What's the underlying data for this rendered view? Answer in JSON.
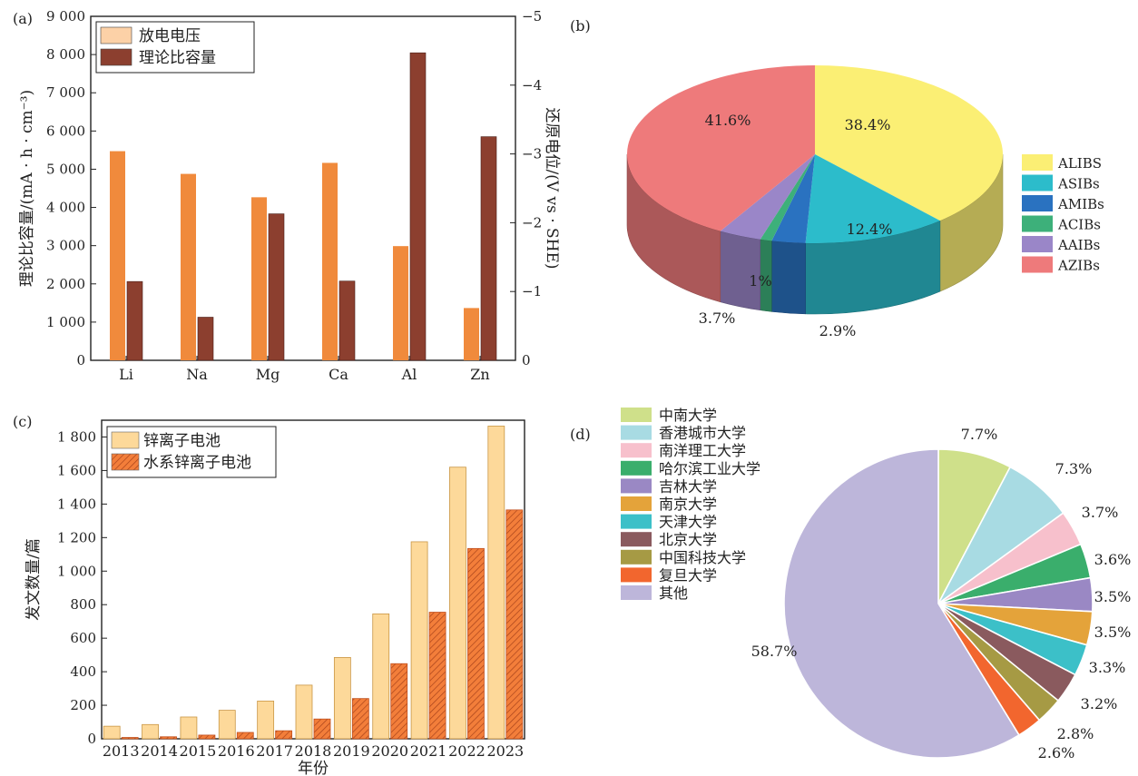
{
  "panels": {
    "a": "(a)",
    "b": "(b)",
    "c": "(c)",
    "d": "(d)"
  },
  "chart_data": [
    {
      "id": "a",
      "type": "bar",
      "categories": [
        "Li",
        "Na",
        "Mg",
        "Ca",
        "Al",
        "Zn"
      ],
      "series": [
        {
          "name": "放电电压",
          "axis": "right",
          "color": "#f08a3c",
          "values": [
            -3.04,
            -2.71,
            -2.37,
            -2.87,
            -1.66,
            -0.76
          ]
        },
        {
          "name": "理论比容量",
          "axis": "left",
          "color": "#8c3f2f",
          "values": [
            2062,
            1128,
            3833,
            2073,
            8046,
            5851
          ]
        }
      ],
      "ylabel": "理论比容量/(mA · h · cm⁻³)",
      "y2label": "还原电位/(V vs · SHE)",
      "ylim": [
        0,
        9000
      ],
      "y2lim": [
        0,
        -5
      ],
      "yticks": [
        "0",
        "1 000",
        "2 000",
        "3 000",
        "4 000",
        "5 000",
        "6 000",
        "7 000",
        "8 000",
        "9 000"
      ],
      "y2ticks": [
        "0",
        "−1",
        "−2",
        "−3",
        "−4",
        "−5"
      ],
      "legend_position": "top-left"
    },
    {
      "id": "b",
      "type": "pie",
      "style": "3d",
      "labels": [
        "ALIBS",
        "ASIBs",
        "AMIBs",
        "ACIBs",
        "AAIBs",
        "AZIBs"
      ],
      "values": [
        38.4,
        12.4,
        2.9,
        1.0,
        3.7,
        41.6
      ],
      "slice_labels": [
        "38.4%",
        "12.4%",
        "2.9%",
        "1%",
        "3.7%",
        "41.6%"
      ],
      "colors": [
        "#fbef74",
        "#2cbccb",
        "#2a72c0",
        "#3db07a",
        "#9a86c8",
        "#ee7a7b"
      ],
      "legend_position": "right"
    },
    {
      "id": "c",
      "type": "bar",
      "categories": [
        "2013",
        "2014",
        "2015",
        "2016",
        "2017",
        "2018",
        "2019",
        "2020",
        "2021",
        "2022",
        "2023"
      ],
      "series": [
        {
          "name": "锌离子电池",
          "color": "#fdd99a",
          "values": [
            75,
            85,
            130,
            170,
            225,
            320,
            485,
            745,
            1175,
            1620,
            1865
          ]
        },
        {
          "name": "水系锌离子电池",
          "color": "#f37e3a",
          "values": [
            8,
            12,
            22,
            38,
            48,
            118,
            240,
            448,
            755,
            1135,
            1365
          ]
        }
      ],
      "xlabel": "年份",
      "ylabel": "发文数量/篇",
      "ylim": [
        0,
        1900
      ],
      "yticks": [
        "0",
        "200",
        "400",
        "600",
        "800",
        "1 000",
        "1 200",
        "1 400",
        "1 600",
        "1 800"
      ],
      "legend_position": "top-left"
    },
    {
      "id": "d",
      "type": "pie",
      "labels": [
        "中南大学",
        "香港城市大学",
        "南洋理工大学",
        "哈尔滨工业大学",
        "吉林大学",
        "南京大学",
        "天津大学",
        "北京大学",
        "中国科技大学",
        "复旦大学",
        "其他"
      ],
      "values": [
        7.7,
        7.3,
        3.7,
        3.6,
        3.5,
        3.5,
        3.3,
        3.2,
        2.8,
        2.6,
        58.7
      ],
      "slice_labels": [
        "7.7%",
        "7.3%",
        "3.7%",
        "3.6%",
        "3.5%",
        "3.5%",
        "3.3%",
        "3.2%",
        "2.8%",
        "2.6%",
        "58.7%"
      ],
      "colors": [
        "#cfe08a",
        "#a8dbe3",
        "#f7c0cc",
        "#3aae6c",
        "#9a88c4",
        "#e4a33a",
        "#3cc0c8",
        "#8a5a5e",
        "#a69a44",
        "#f2662e",
        "#bdb6da"
      ],
      "legend_position": "left"
    }
  ]
}
